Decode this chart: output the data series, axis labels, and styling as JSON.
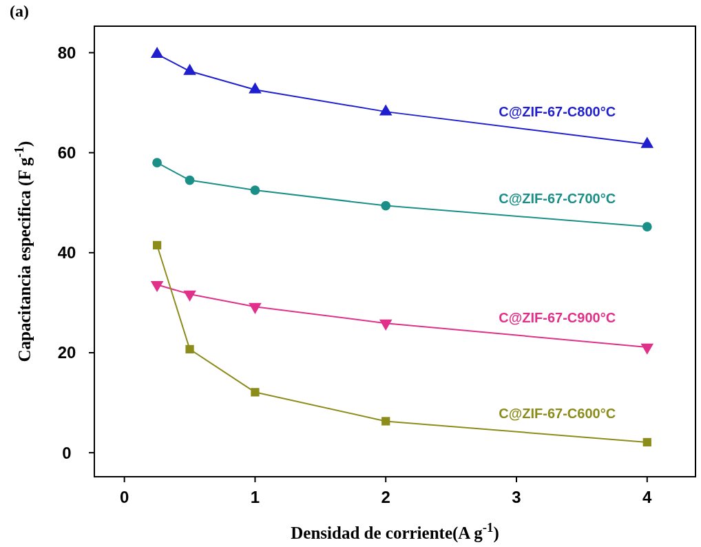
{
  "chart_data": {
    "type": "line",
    "title": "(a)",
    "xlabel": "Densidad de corriente(A g$^{-1}$)",
    "ylabel": "Capacitancia especifica (F g$^{-1}$)",
    "x": [
      0.25,
      0.5,
      1,
      2,
      4
    ],
    "series": [
      {
        "name": "C@ZIF-67-C800°C",
        "color": "#1f1fd0",
        "marker": "triangle",
        "values": [
          79.7,
          76.3,
          72.6,
          68.2,
          61.7
        ]
      },
      {
        "name": "C@ZIF-67-C700°C",
        "color": "#1a8f87",
        "marker": "circle",
        "values": [
          58.0,
          54.5,
          52.5,
          49.4,
          45.2
        ]
      },
      {
        "name": "C@ZIF-67-C900°C",
        "color": "#e0308a",
        "marker": "triangle-down",
        "values": [
          33.6,
          31.7,
          29.2,
          25.9,
          21.1
        ]
      },
      {
        "name": "C@ZIF-67-C600°C",
        "color": "#8c8c1a",
        "marker": "square",
        "values": [
          41.5,
          20.7,
          12.1,
          6.3,
          2.1
        ]
      }
    ],
    "xlim": [
      -0.23,
      4.37
    ],
    "ylim": [
      -4.8,
      85.3
    ],
    "xticks": [
      0,
      1,
      2,
      3,
      4
    ],
    "yticks": [
      0,
      20,
      40,
      60,
      80
    ],
    "grid": false,
    "line_style": "solid"
  }
}
